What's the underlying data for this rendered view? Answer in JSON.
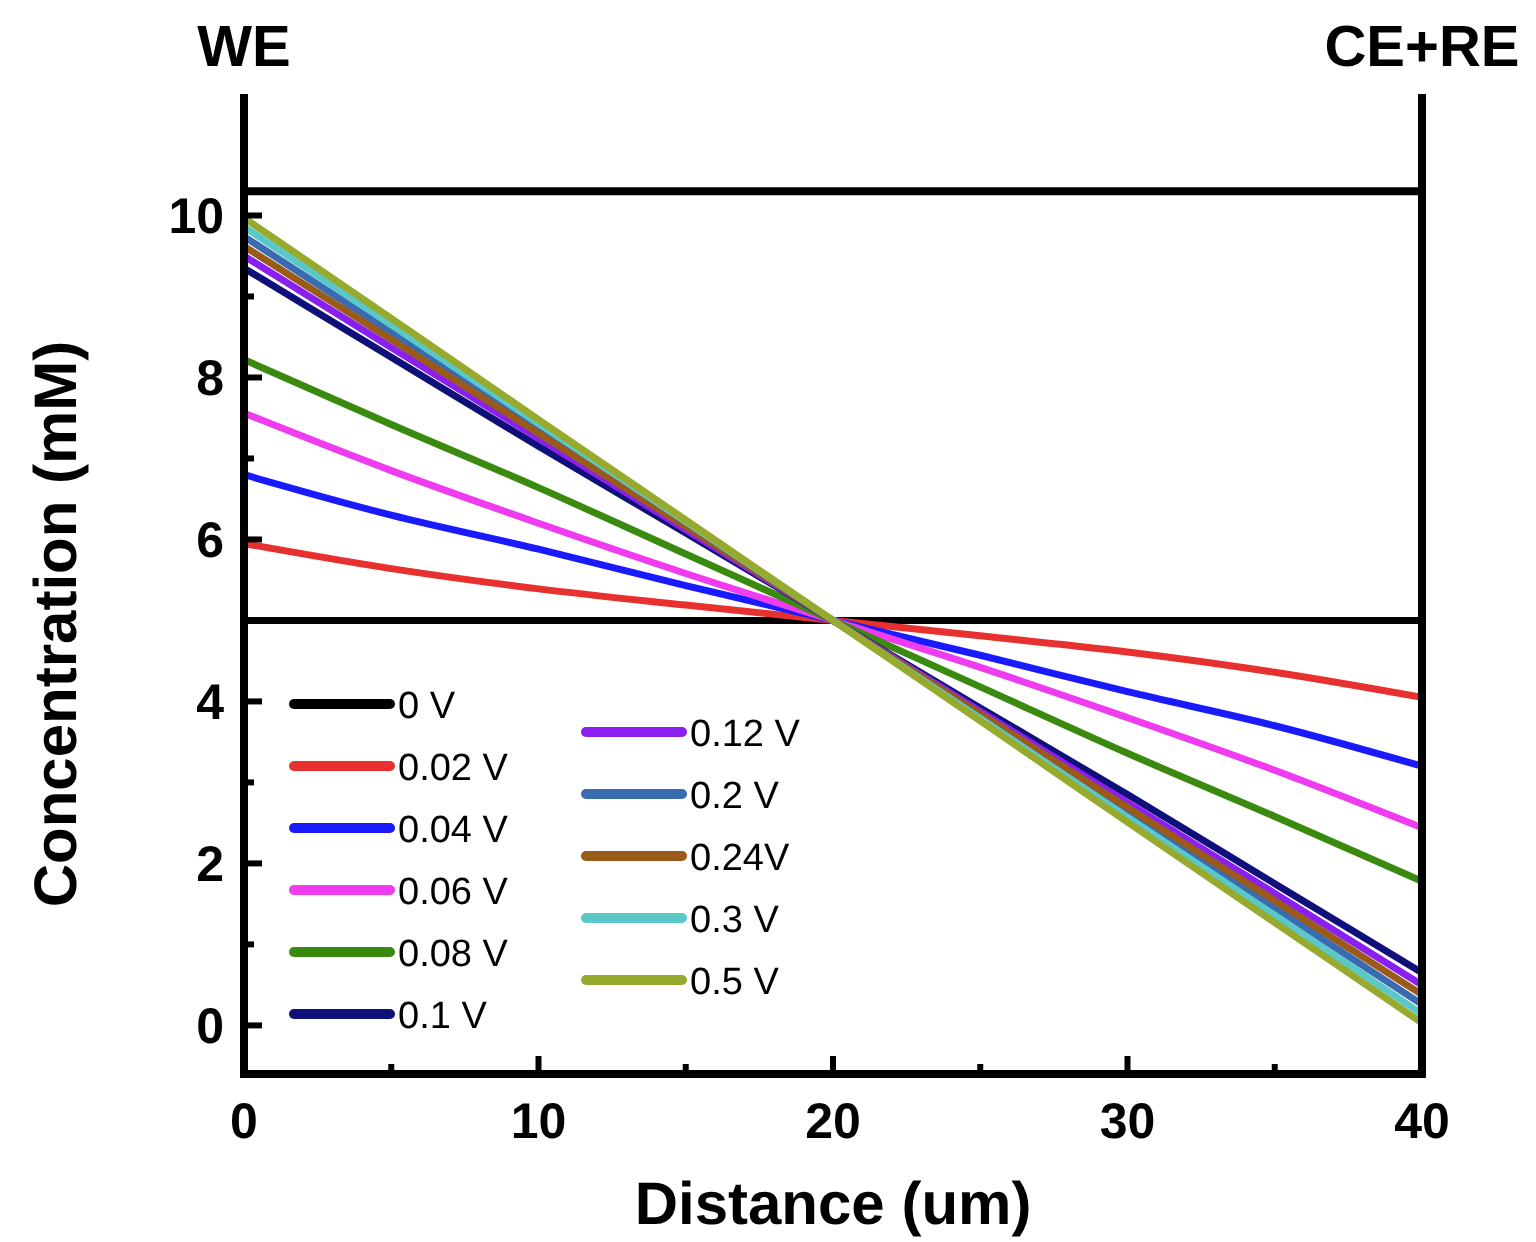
{
  "chart_data": {
    "type": "line",
    "xlabel": "Distance (um)",
    "ylabel": "Concentration (mM)",
    "annotations": [
      "WE",
      "CE+RE"
    ],
    "x": [
      0,
      5,
      10,
      15,
      20,
      25,
      30,
      35,
      40
    ],
    "xlim": [
      0,
      40
    ],
    "ylim": [
      -0.6,
      11.5
    ],
    "xticks": [
      0,
      {
        "value": 5,
        "label": null
      },
      10,
      {
        "value": 15,
        "label": null
      },
      20,
      {
        "value": 25,
        "label": null
      },
      30,
      {
        "value": 35,
        "label": null
      },
      40
    ],
    "yticks": [
      0,
      {
        "value": 1,
        "label": null
      },
      2,
      {
        "value": 3,
        "label": null
      },
      4,
      {
        "value": 5,
        "label": null
      },
      6,
      {
        "value": 7,
        "label": null
      },
      8,
      {
        "value": 9,
        "label": null
      },
      10
    ],
    "ref_lines": [
      {
        "axis": "y",
        "value": 10.3,
        "color": "#000000"
      }
    ],
    "legend": "bottom left",
    "grid": false,
    "marker": "none",
    "line_style": "solid",
    "series": [
      {
        "name": "0 V",
        "color": "#000000",
        "values": [
          5,
          5,
          5,
          5,
          5,
          5,
          5,
          5,
          5
        ]
      },
      {
        "name": "0.02 V",
        "color": "#e8312f",
        "values": [
          5.95,
          5.64,
          5.39,
          5.19,
          5,
          4.81,
          4.61,
          4.36,
          4.05
        ]
      },
      {
        "name": "0.04 V",
        "color": "#1a1aff",
        "values": [
          6.8,
          6.3,
          5.88,
          5.43,
          5,
          4.57,
          4.12,
          3.7,
          3.2
        ]
      },
      {
        "name": "0.06 V",
        "color": "#f03cf0",
        "values": [
          7.56,
          6.85,
          6.2,
          5.58,
          5,
          4.42,
          3.8,
          3.15,
          2.44
        ]
      },
      {
        "name": "0.08 V",
        "color": "#3a8a10",
        "values": [
          8.22,
          7.42,
          6.64,
          5.82,
          5,
          4.18,
          3.36,
          2.58,
          1.78
        ]
      },
      {
        "name": "0.1 V",
        "color": "#10107a",
        "values": [
          9.35,
          8.25,
          7.15,
          6.08,
          5,
          3.92,
          2.85,
          1.75,
          0.65
        ]
      },
      {
        "name": "0.12 V",
        "color": "#8a20f0",
        "values": [
          9.5,
          8.37,
          7.25,
          6.12,
          5,
          3.88,
          2.75,
          1.63,
          0.5
        ]
      },
      {
        "name": "0.2 V",
        "color": "#3a6ab0",
        "values": [
          9.74,
          8.56,
          7.37,
          6.19,
          5,
          3.82,
          2.63,
          1.45,
          0.26
        ]
      },
      {
        "name": "0.24V",
        "color": "#9a5a1a",
        "values": [
          9.62,
          8.47,
          7.31,
          6.16,
          5,
          3.85,
          2.69,
          1.54,
          0.38
        ]
      },
      {
        "name": "0.3 V",
        "color": "#5ac8c8",
        "values": [
          9.86,
          8.65,
          7.43,
          6.22,
          5,
          3.79,
          2.57,
          1.36,
          0.14
        ]
      },
      {
        "name": "0.5 V",
        "color": "#98aa2e",
        "values": [
          9.97,
          8.73,
          7.48,
          6.24,
          5,
          3.76,
          2.51,
          1.27,
          0.03
        ]
      }
    ]
  }
}
